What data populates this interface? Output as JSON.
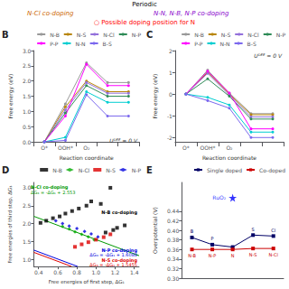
{
  "chart_data": [
    {
      "type": "diagram",
      "annotations": [
        {
          "text": "Periodic",
          "color": "black"
        },
        {
          "text": "N-Cl co-doping",
          "color": "#cc6600"
        },
        {
          "text": "N-N, N-B, N-P co-doping",
          "color": "#8800cc"
        },
        {
          "text": "○ Possible doping position for N",
          "color": "red"
        }
      ]
    },
    {
      "type": "line",
      "title": "B",
      "xlabel": "Reaction coordinate",
      "ylabel": "Free energy (eV)",
      "categories": [
        "O*",
        "OOH*",
        "O₂",
        null,
        null
      ],
      "ylim": [
        0,
        3.0
      ],
      "yticks": [
        {
          "value": 0,
          "label": "0.0"
        },
        0.5,
        {
          "value": 1,
          "label": "1.0"
        },
        1.5,
        {
          "value": 2,
          "label": "2.0"
        },
        2.5,
        {
          "value": 3,
          "label": "3.0"
        }
      ],
      "grid": false,
      "legend": "upper right",
      "annotations": [
        {
          "text": "Uᴰᴱᴱ = 0 V"
        }
      ],
      "series": [
        {
          "name": "N-B",
          "color": "#999999",
          "values": [
            0.0,
            1.25,
            2.6,
            1.95,
            1.95
          ]
        },
        {
          "name": "N-S",
          "color": "#b8860b",
          "values": [
            0.0,
            1.15,
            2.0,
            1.65,
            1.65
          ]
        },
        {
          "name": "N-Cl",
          "color": "#9370db",
          "values": [
            0.0,
            1.05,
            1.95,
            1.6,
            1.6
          ]
        },
        {
          "name": "N-P",
          "color": "#2e8b57",
          "values": [
            0.0,
            0.95,
            1.85,
            1.5,
            1.5
          ]
        },
        {
          "name": "P-P",
          "color": "#ff00ff",
          "values": [
            0.0,
            0.85,
            2.55,
            1.85,
            1.85
          ]
        },
        {
          "name": "N-N",
          "color": "#00ced1",
          "values": [
            0.0,
            0.15,
            1.65,
            1.3,
            1.3
          ]
        },
        {
          "name": "B-S",
          "color": "#7b68ee",
          "values": [
            0.0,
            0.05,
            1.55,
            0.85,
            0.85
          ]
        }
      ]
    },
    {
      "type": "line",
      "title": "C",
      "xlabel": "Reaction coordinate",
      "ylabel": "Free energy (eV)",
      "categories": [
        "O*",
        "OOH*",
        "O₂",
        null,
        null
      ],
      "ylim": [
        -2.2,
        2.0
      ],
      "yticks": [
        -2,
        -1,
        0,
        1,
        2
      ],
      "grid": false,
      "legend": "upper right",
      "annotations": [
        {
          "text": "Uᴰᴱᴱ = 0 V"
        }
      ],
      "series": [
        {
          "name": "N-B",
          "color": "#999999",
          "values": [
            0.0,
            1.1,
            0.05,
            -0.9,
            -0.9
          ]
        },
        {
          "name": "N-S",
          "color": "#b8860b",
          "values": [
            0.0,
            1.0,
            0.0,
            -0.95,
            -0.95
          ]
        },
        {
          "name": "N-Cl",
          "color": "#9370db",
          "values": [
            0.0,
            0.95,
            -0.05,
            -1.05,
            -1.05
          ]
        },
        {
          "name": "N-P",
          "color": "#2e8b57",
          "values": [
            0.0,
            0.7,
            -0.1,
            -1.15,
            -1.15
          ]
        },
        {
          "name": "P-P",
          "color": "#ff00ff",
          "values": [
            0.0,
            1.05,
            0.05,
            -1.6,
            -1.6
          ]
        },
        {
          "name": "N-N",
          "color": "#00ced1",
          "values": [
            0.0,
            -0.15,
            -0.5,
            -1.75,
            -1.75
          ]
        },
        {
          "name": "B-S",
          "color": "#7b68ee",
          "values": [
            0.0,
            -0.3,
            -0.65,
            -2.0,
            -2.0
          ]
        }
      ]
    },
    {
      "type": "scatter",
      "title": "D",
      "xlabel": "Free energies of first step, ΔG₁",
      "ylabel": "Free energies of third step, ΔG₃",
      "xlim": [
        0.35,
        1.45
      ],
      "ylim": [
        0.8,
        3.15
      ],
      "xticks": [
        0.4,
        0.6,
        0.8,
        {
          "value": 1,
          "label": "1.0"
        },
        1.2,
        1.4
      ],
      "yticks": [
        {
          "value": 1,
          "label": "1.0"
        },
        1.5,
        {
          "value": 2,
          "label": "2.0"
        },
        2.5,
        {
          "value": 3,
          "label": "3.0"
        }
      ],
      "grid": false,
      "legend": "upper right",
      "series": [
        {
          "name": "N-B",
          "color": "black",
          "marker": "square",
          "x": [
            1.3,
            1.22,
            1.18,
            1.1,
            1.05,
            0.9,
            0.82,
            0.75,
            0.68,
            0.62,
            0.55,
            0.48,
            0.95,
            1.15,
            0.42
          ],
          "values": [
            1.95,
            1.88,
            1.82,
            1.75,
            2.55,
            2.5,
            2.42,
            2.35,
            2.28,
            2.2,
            2.15,
            2.08,
            2.62,
            3.0,
            2.02
          ]
        },
        {
          "name": "N-Cl",
          "color": "#00aa00",
          "marker": "diamond",
          "x": [
            0.78,
            0.85,
            0.92,
            0.98,
            0.72,
            0.65
          ],
          "values": [
            1.77,
            1.7,
            1.63,
            1.55,
            1.85,
            1.92
          ]
        },
        {
          "name": "N-S",
          "color": "#dd0000",
          "marker": "square",
          "x": [
            1.0,
            0.92,
            0.85,
            0.78,
            1.08,
            1.15
          ],
          "values": [
            1.55,
            1.48,
            1.42,
            1.35,
            1.62,
            1.7
          ]
        },
        {
          "name": "N-P",
          "color": "#0000dd",
          "marker": "diamond",
          "x": [
            0.72,
            0.8,
            0.88,
            0.95,
            1.02,
            0.65,
            0.58
          ],
          "values": [
            1.93,
            1.86,
            1.78,
            1.71,
            1.63,
            2.0,
            2.08
          ]
        },
        {
          "type": "line",
          "color": "#dd0000",
          "x": [
            0.35,
            0.7455
          ],
          "values": [
            1.1955,
            0.8
          ]
        },
        {
          "type": "line",
          "color": "#0000dd",
          "x": [
            0.35,
            0.8089
          ],
          "values": [
            1.2589,
            0.8
          ]
        },
        {
          "type": "line",
          "color": "#009900",
          "x": [
            0.35,
            1.45
          ],
          "values": [
            2.203,
            1.103
          ]
        }
      ],
      "annotations": [
        {
          "text": "N-S co-doping",
          "color": "#dd0000"
        },
        {
          "text": "ΔG₃ = -ΔG₁ + 1.5455",
          "color": "#dd0000"
        },
        {
          "text": "N-P co-doping",
          "color": "#0000dd"
        },
        {
          "text": "ΔG₃ = -ΔG₁ + 1.6089",
          "color": "#0000dd"
        },
        {
          "text": "N-Cl co-doping",
          "color": "#009900"
        },
        {
          "text": "ΔG₃ = -ΔG₁ + 2.553",
          "color": "#009900"
        },
        {
          "text": "N-B co-doping",
          "color": "black"
        }
      ]
    },
    {
      "type": "line",
      "title": "E",
      "ylabel": "Overpotential (V)",
      "categories": [
        null,
        null,
        null,
        null,
        null
      ],
      "ylim": [
        0.3,
        0.5
      ],
      "yticks": [
        {
          "value": 0.3,
          "label": "0.30"
        },
        0.32,
        0.34,
        0.36,
        0.38,
        {
          "value": 0.4,
          "label": "0.40"
        },
        0.42,
        0.44
      ],
      "grid": false,
      "legend": "upper right",
      "tick_labels": "y",
      "series": [
        {
          "name": "Single doped",
          "color": "#000066",
          "marker": "square",
          "values": [
            0.385,
            0.37,
            0.365,
            0.39,
            0.388
          ],
          "labels": [
            "B",
            "P",
            null,
            "S",
            "Cl"
          ]
        },
        {
          "name": "Co-doped",
          "color": "#cc0000",
          "marker": "square",
          "values": [
            0.36,
            0.36,
            0.36,
            0.362,
            0.362
          ],
          "labels": [
            "N-B",
            "N-P",
            "N",
            "N-S",
            "N-Cl"
          ]
        }
      ],
      "annotations": [
        {
          "text": "RuO₂",
          "x": 2,
          "y": 0.468,
          "marker": "star",
          "color": "blue"
        }
      ]
    }
  ]
}
